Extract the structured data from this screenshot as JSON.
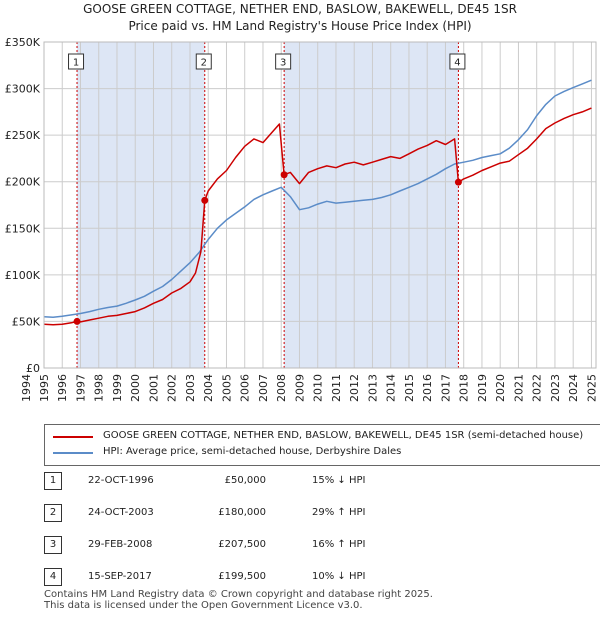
{
  "chart_data": {
    "type": "line",
    "title": "GOOSE GREEN COTTAGE, NETHER END, BASLOW, BAKEWELL, DE45 1SR",
    "subtitle": "Price paid vs. HM Land Registry's House Price Index (HPI)",
    "xlim": [
      1995.0,
      2025.25
    ],
    "ylim": [
      0,
      350000
    ],
    "y_ticks": [
      {
        "value": 0,
        "label": "£0"
      },
      {
        "value": 50000,
        "label": "£50K"
      },
      {
        "value": 100000,
        "label": "£100K"
      },
      {
        "value": 150000,
        "label": "£150K"
      },
      {
        "value": 200000,
        "label": "£200K"
      },
      {
        "value": 250000,
        "label": "£250K"
      },
      {
        "value": 300000,
        "label": "£300K"
      },
      {
        "value": 350000,
        "label": "£350K"
      }
    ],
    "x_ticks": [
      "1994",
      "1995",
      "1996",
      "1997",
      "1998",
      "1999",
      "2000",
      "2001",
      "2002",
      "2003",
      "2004",
      "2005",
      "2006",
      "2007",
      "2008",
      "2009",
      "2010",
      "2011",
      "2012",
      "2013",
      "2014",
      "2015",
      "2016",
      "2017",
      "2018",
      "2019",
      "2020",
      "2021",
      "2022",
      "2023",
      "2024",
      "2025"
    ],
    "x_tick_start": 1994,
    "grid": true,
    "shaded_periods": [
      [
        1996.81,
        2003.81
      ],
      [
        2008.16,
        2017.71
      ]
    ],
    "series": [
      {
        "name": "GOOSE GREEN COTTAGE, NETHER END, BASLOW, BAKEWELL, DE45 1SR (semi-detached house)",
        "color": "#cc0000",
        "x": [
          1995.0,
          1995.5,
          1996.0,
          1996.5,
          1996.81,
          1997.0,
          1997.5,
          1998.0,
          1998.5,
          1999.0,
          1999.5,
          2000.0,
          2000.5,
          2001.0,
          2001.5,
          2002.0,
          2002.5,
          2003.0,
          2003.3,
          2003.6,
          2003.81,
          2004.0,
          2004.5,
          2005.0,
          2005.5,
          2006.0,
          2006.5,
          2007.0,
          2007.5,
          2007.9,
          2008.16,
          2008.5,
          2009.0,
          2009.5,
          2010.0,
          2010.5,
          2011.0,
          2011.5,
          2012.0,
          2012.5,
          2013.0,
          2013.5,
          2014.0,
          2014.5,
          2015.0,
          2015.5,
          2016.0,
          2016.5,
          2017.0,
          2017.5,
          2017.71,
          2018.0,
          2018.5,
          2019.0,
          2019.5,
          2020.0,
          2020.5,
          2021.0,
          2021.5,
          2022.0,
          2022.5,
          2023.0,
          2023.5,
          2024.0,
          2024.5,
          2025.0
        ],
        "values": [
          47000,
          46500,
          47000,
          48500,
          50000,
          49500,
          51500,
          53500,
          55500,
          56500,
          58500,
          60500,
          64500,
          69500,
          73500,
          80500,
          85500,
          92500,
          102000,
          125000,
          180000,
          190000,
          203000,
          212000,
          226000,
          238000,
          246000,
          242000,
          253000,
          262000,
          207500,
          210000,
          198000,
          210000,
          214000,
          217000,
          215000,
          219000,
          221000,
          218000,
          221000,
          224000,
          227000,
          225000,
          230000,
          235000,
          239000,
          244000,
          240000,
          246000,
          199500,
          203000,
          207000,
          212000,
          216000,
          220000,
          222000,
          229000,
          236000,
          246000,
          257000,
          263000,
          268000,
          272000,
          275000,
          279000
        ]
      },
      {
        "name": "HPI: Average price, semi-detached house, Derbyshire Dales",
        "color": "#5b8cc8",
        "x": [
          1995.0,
          1995.5,
          1996.0,
          1996.5,
          1997.0,
          1997.5,
          1998.0,
          1998.5,
          1999.0,
          1999.5,
          2000.0,
          2000.5,
          2001.0,
          2001.5,
          2002.0,
          2002.5,
          2003.0,
          2003.5,
          2004.0,
          2004.5,
          2005.0,
          2005.5,
          2006.0,
          2006.5,
          2007.0,
          2007.5,
          2008.0,
          2008.5,
          2009.0,
          2009.5,
          2010.0,
          2010.5,
          2011.0,
          2011.5,
          2012.0,
          2012.5,
          2013.0,
          2013.5,
          2014.0,
          2014.5,
          2015.0,
          2015.5,
          2016.0,
          2016.5,
          2017.0,
          2017.5,
          2018.0,
          2018.5,
          2019.0,
          2019.5,
          2020.0,
          2020.5,
          2021.0,
          2021.5,
          2022.0,
          2022.5,
          2023.0,
          2023.5,
          2024.0,
          2024.5,
          2025.0
        ],
        "values": [
          55000,
          54500,
          55500,
          57000,
          58500,
          60500,
          63000,
          65000,
          66500,
          69500,
          73000,
          77000,
          82500,
          87500,
          95000,
          104000,
          113000,
          124000,
          138000,
          150000,
          159000,
          166000,
          173000,
          181000,
          186000,
          190000,
          194000,
          184000,
          170000,
          172000,
          176000,
          179000,
          177000,
          178000,
          179000,
          180000,
          181000,
          183000,
          186000,
          190000,
          194000,
          198000,
          203000,
          208000,
          214000,
          219000,
          221000,
          223000,
          226000,
          228000,
          230000,
          236000,
          245000,
          256000,
          271000,
          283000,
          292000,
          297000,
          301000,
          305000,
          309000
        ]
      }
    ],
    "sales": [
      {
        "marker": "1",
        "x": 1996.81,
        "value": 50000
      },
      {
        "marker": "2",
        "x": 2003.81,
        "value": 180000
      },
      {
        "marker": "3",
        "x": 2008.16,
        "value": 207500
      },
      {
        "marker": "4",
        "x": 2017.71,
        "value": 199500
      }
    ]
  },
  "legend": {
    "property_label": "GOOSE GREEN COTTAGE, NETHER END, BASLOW, BAKEWELL, DE45 1SR (semi-detached house)",
    "hpi_label": "HPI: Average price, semi-detached house, Derbyshire Dales"
  },
  "transactions": [
    {
      "num": "1",
      "date": "22-OCT-1996",
      "price": "£50,000",
      "hpi": "15% ↓ HPI"
    },
    {
      "num": "2",
      "date": "24-OCT-2003",
      "price": "£180,000",
      "hpi": "29% ↑ HPI"
    },
    {
      "num": "3",
      "date": "29-FEB-2008",
      "price": "£207,500",
      "hpi": "16% ↑ HPI"
    },
    {
      "num": "4",
      "date": "15-SEP-2017",
      "price": "£199,500",
      "hpi": "10% ↓ HPI"
    }
  ],
  "footer": {
    "line1": "Contains HM Land Registry data © Crown copyright and database right 2025.",
    "line2": "This data is licensed under the Open Government Licence v3.0."
  },
  "colors": {
    "property": "#cc0000",
    "hpi": "#5b8cc8",
    "shade": "#dde6f5",
    "grid": "#cccccc",
    "sale_line": "#cc0000"
  }
}
